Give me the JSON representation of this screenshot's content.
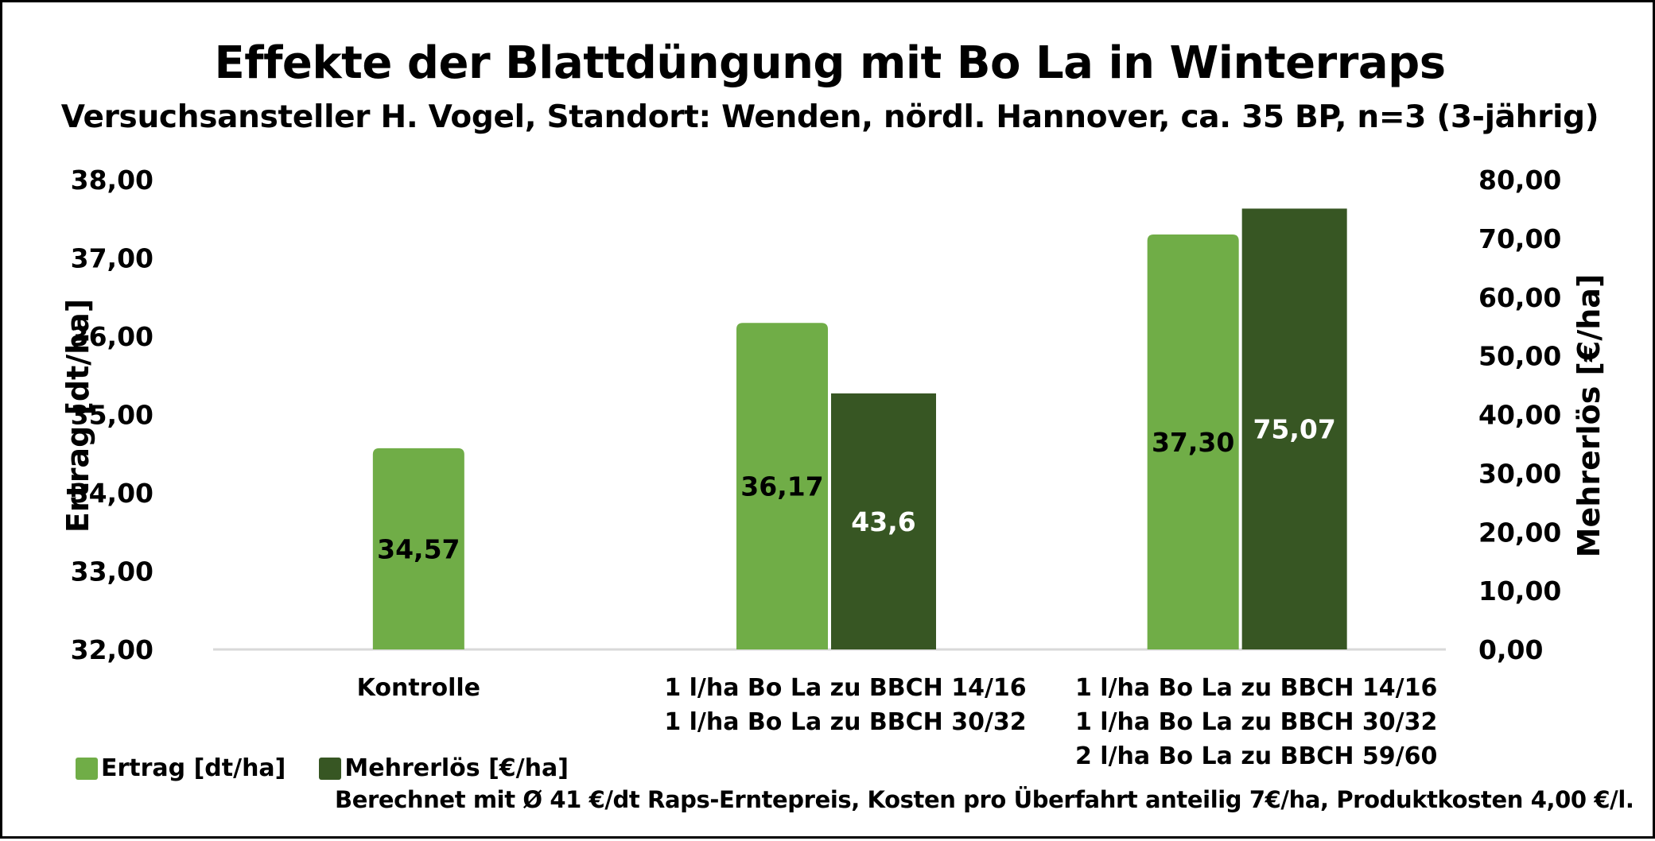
{
  "colors": {
    "ertrag": "#70ad47",
    "mehrerloes": "#375623",
    "gridline": "#d9d9d9",
    "border": "#000000"
  },
  "chart_data": {
    "type": "bar",
    "title": "Effekte der Blattdüngung mit Bo La in Winterraps",
    "subtitle": "Versuchsansteller H. Vogel, Standort: Wenden, nördl. Hannover, ca. 35 BP, n=3 (3-jährig)",
    "categories": [
      [
        "Kontrolle"
      ],
      [
        "1 l/ha Bo La zu BBCH 14/16",
        "1 l/ha Bo La zu BBCH 30/32"
      ],
      [
        "1 l/ha Bo La zu BBCH 14/16",
        "1 l/ha Bo La zu BBCH 30/32",
        "2 l/ha Bo La zu BBCH 59/60"
      ]
    ],
    "series": [
      {
        "name": "Ertrag [dt/ha]",
        "axis": "left",
        "values": [
          34.57,
          36.17,
          37.3
        ],
        "labels": [
          "34,57",
          "36,17",
          "37,30"
        ]
      },
      {
        "name": "Mehrerlös [€/ha]",
        "axis": "right",
        "values": [
          null,
          43.6,
          75.07
        ],
        "labels": [
          null,
          "43,6",
          "75,07"
        ]
      }
    ],
    "ylabel": "Ertrag [dt/ha]",
    "ylim": [
      32,
      38
    ],
    "yticks": [
      "32,00",
      "33,00",
      "34,00",
      "35,00",
      "36,00",
      "37,00",
      "38,00"
    ],
    "y2label": "Mehrerlös [€/ha]",
    "y2lim": [
      0,
      80
    ],
    "y2ticks": [
      "0,00",
      "10,00",
      "20,00",
      "30,00",
      "40,00",
      "50,00",
      "60,00",
      "70,00",
      "80,00"
    ],
    "grid": false,
    "legend_position": "bottom-left"
  },
  "legend": {
    "ertrag": "Ertrag [dt/ha]",
    "mehrerloes": "Mehrerlös [€/ha]"
  },
  "note": "Berechnet mit Ø 41 €/dt Raps-Erntepreis, Kosten pro Überfahrt anteilig 7€/ha, Produktkosten 4,00 €/l."
}
